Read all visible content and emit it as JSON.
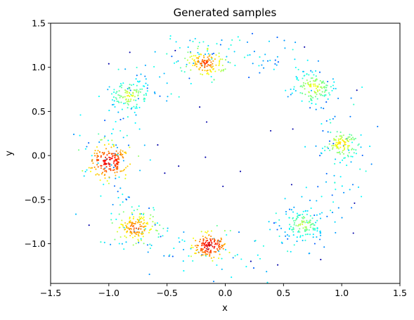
{
  "chart_data": {
    "type": "scatter",
    "title": "Generated samples",
    "xlabel": "x",
    "ylabel": "y",
    "xlim": [
      -1.5,
      1.5
    ],
    "ylim": [
      -1.45,
      1.5
    ],
    "xticks": [
      "−1.5",
      "−1.0",
      "−0.5",
      "0.0",
      "0.5",
      "1.0",
      "1.5"
    ],
    "xtick_values": [
      -1.5,
      -1.0,
      -0.5,
      0.0,
      0.5,
      1.0,
      1.5
    ],
    "yticks": [
      "−1.0",
      "−0.5",
      "0.0",
      "0.5",
      "1.0",
      "1.5"
    ],
    "ytick_values": [
      -1.0,
      -0.5,
      0.0,
      0.5,
      1.0,
      1.5
    ],
    "grid": false,
    "colormap": "jet",
    "color_meaning": "density (red = high, blue = sparse)",
    "clusters": [
      {
        "center": [
          -1.0,
          -0.07
        ],
        "spread": 0.09,
        "count": 170,
        "peak_color": 0.97
      },
      {
        "center": [
          -0.17,
          1.05
        ],
        "spread": 0.08,
        "count": 130,
        "peak_color": 0.86
      },
      {
        "center": [
          0.76,
          0.77
        ],
        "spread": 0.09,
        "count": 120,
        "peak_color": 0.68
      },
      {
        "center": [
          1.0,
          0.13
        ],
        "spread": 0.08,
        "count": 110,
        "peak_color": 0.72
      },
      {
        "center": [
          0.67,
          -0.78
        ],
        "spread": 0.09,
        "count": 120,
        "peak_color": 0.62
      },
      {
        "center": [
          -0.13,
          -1.02
        ],
        "spread": 0.07,
        "count": 140,
        "peak_color": 0.98
      },
      {
        "center": [
          -0.77,
          -0.82
        ],
        "spread": 0.09,
        "count": 140,
        "peak_color": 0.84
      },
      {
        "center": [
          -0.82,
          0.68
        ],
        "spread": 0.09,
        "count": 110,
        "peak_color": 0.66
      }
    ],
    "ring": {
      "radius": 1.05,
      "count": 360,
      "color": 0.32
    },
    "outliers": [
      [
        -0.82,
        1.17
      ],
      [
        0.68,
        1.23
      ],
      [
        -1.0,
        1.04
      ],
      [
        -0.43,
        1.19
      ],
      [
        -0.22,
        0.55
      ],
      [
        -0.16,
        0.38
      ],
      [
        -0.58,
        0.12
      ],
      [
        -0.4,
        -0.12
      ],
      [
        -0.52,
        -0.2
      ],
      [
        0.13,
        -0.18
      ],
      [
        -0.17,
        -0.02
      ],
      [
        -0.02,
        -0.35
      ],
      [
        0.39,
        0.28
      ],
      [
        -1.17,
        -0.79
      ],
      [
        0.45,
        -1.24
      ],
      [
        0.82,
        -1.18
      ],
      [
        0.22,
        -1.2
      ],
      [
        1.13,
        0.74
      ],
      [
        1.1,
        -0.88
      ],
      [
        0.58,
        0.3
      ],
      [
        1.11,
        -0.54
      ],
      [
        0.57,
        -0.33
      ]
    ]
  }
}
